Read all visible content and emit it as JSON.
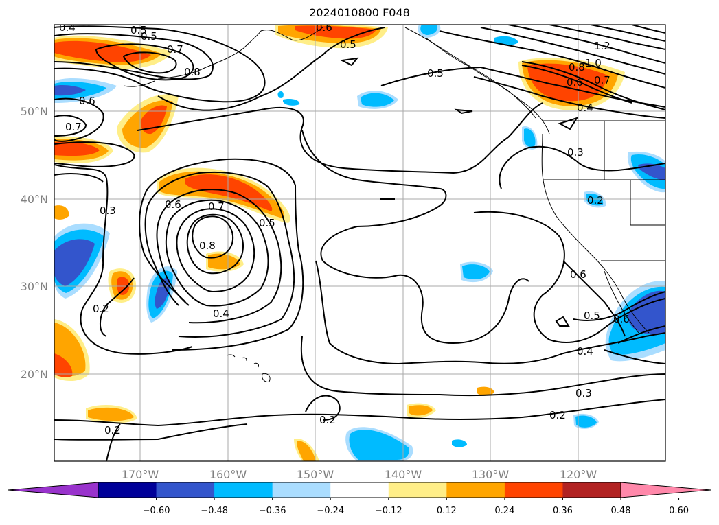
{
  "title": "2024010800 F048",
  "map": {
    "latitude_labels": [
      "50°N",
      "40°N",
      "30°N",
      "20°N"
    ],
    "longitude_labels": [
      "170°W",
      "160°W",
      "150°W",
      "140°W",
      "130°W",
      "120°W"
    ],
    "contour_labels": [
      "0.5",
      "0.4",
      "0.5",
      "0.6",
      "0.7",
      "0.8",
      "0.6",
      "0.7",
      "0.5",
      "0.5",
      "1.2",
      "1.0",
      "0.8",
      "0.6",
      "0.7",
      "0.4",
      "0.3",
      "0.3",
      "0.6",
      "0.7",
      "0.8",
      "0.5",
      "0.4",
      "0.2",
      "0.2",
      "0.2",
      "0.6",
      "0.5",
      "0.6",
      "0.4",
      "0.3",
      "0.2",
      "0.2"
    ]
  },
  "colorbar": {
    "ticks": [
      "−0.60",
      "−0.48",
      "−0.36",
      "−0.24",
      "−0.12",
      "0.12",
      "0.24",
      "0.36",
      "0.48",
      "0.60"
    ],
    "colors": [
      "#9933cc",
      "#000099",
      "#3355cc",
      "#00bbff",
      "#aaddff",
      "#ffffff",
      "#ffee88",
      "#ffa500",
      "#ff4400",
      "#b22222",
      "#ff88aa"
    ]
  }
}
